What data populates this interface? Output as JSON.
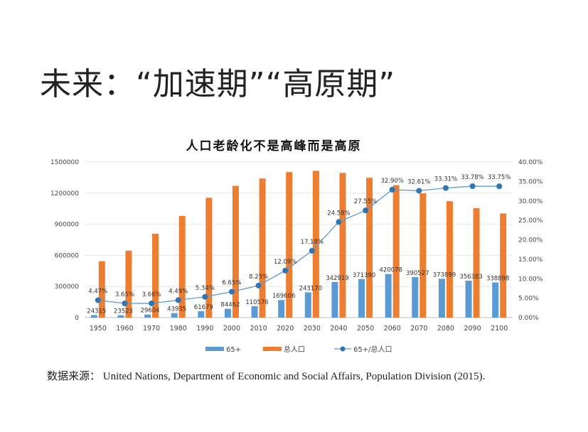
{
  "slide": {
    "heading": "未来：“加速期”“高原期”",
    "source": "数据来源： United Nations, Department of Economic and Social Affairs, Population Division (2015)."
  },
  "chart_data": {
    "type": "bar",
    "title": "人口老龄化不是高峰而是高原",
    "categories": [
      "1950",
      "1960",
      "1970",
      "1980",
      "1990",
      "2000",
      "2010",
      "2020",
      "2030",
      "2040",
      "2050",
      "2060",
      "2070",
      "2080",
      "2090",
      "2100"
    ],
    "y_left": {
      "range": [
        0,
        1500000
      ],
      "ticks": [
        "0",
        "300000",
        "600000",
        "900000",
        "1200000",
        "1500000"
      ]
    },
    "y_right": {
      "range": [
        0,
        40
      ],
      "ticks": [
        "0.00%",
        "5.00%",
        "10.00%",
        "15.00%",
        "20.00%",
        "25.00%",
        "30.00%",
        "35.00%",
        "40.00%"
      ]
    },
    "grid": true,
    "legend_position": "bottom",
    "series": [
      {
        "name": "65+",
        "type": "bar",
        "axis": "left",
        "color": "#5b9bd5",
        "values": [
          24315,
          23523,
          29604,
          43935,
          61679,
          84462,
          110576,
          169606,
          243170,
          342919,
          371390,
          420078,
          390527,
          373899,
          356383,
          338898
        ],
        "labels": [
          "24315",
          "23523",
          "29604",
          "43935",
          "61679",
          "84462",
          "110576",
          "169606",
          "243170",
          "342919",
          "371390",
          "420078",
          "390527",
          "373899",
          "356383",
          "338898"
        ]
      },
      {
        "name": "总人口",
        "type": "bar",
        "axis": "left",
        "color": "#ed7d31",
        "values": [
          544000,
          645000,
          809000,
          981000,
          1155000,
          1270000,
          1341000,
          1403000,
          1415000,
          1395000,
          1348000,
          1277000,
          1198000,
          1122000,
          1055000,
          1004000
        ]
      },
      {
        "name": "65+/总人口",
        "type": "line",
        "axis": "right",
        "color": "#2e75b6",
        "values": [
          4.47,
          3.65,
          3.66,
          4.49,
          5.34,
          6.65,
          8.25,
          12.09,
          17.18,
          24.58,
          27.55,
          32.9,
          32.61,
          33.31,
          33.78,
          33.75
        ],
        "labels": [
          "4.47%",
          "3.65%",
          "3.66%",
          "4.49%",
          "5.34%",
          "6.65%",
          "8.25%",
          "12.09%",
          "17.18%",
          "24.58%",
          "27.55%",
          "32.90%",
          "32.61%",
          "33.31%",
          "33.78%",
          "33.75%"
        ]
      }
    ]
  }
}
